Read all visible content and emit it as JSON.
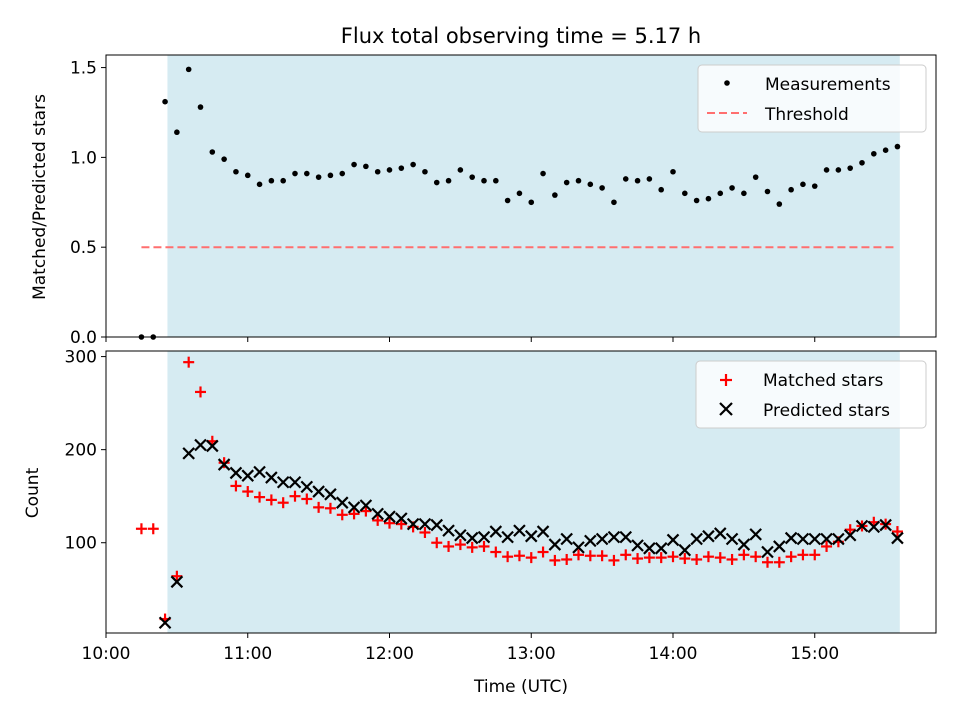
{
  "chart_data": [
    {
      "type": "scatter",
      "title": "Flux total observing time = 5.17 h",
      "ylabel": "Matched/Predicted stars",
      "xlabel": "",
      "ylim": [
        0,
        1.57
      ],
      "yticks": [
        "0.0",
        "0.5",
        "1.0",
        "1.5"
      ],
      "grid": false,
      "legend": "top-right",
      "observing_window": {
        "start": "10:26",
        "end": "15:36",
        "color": "#add8e6"
      },
      "series": [
        {
          "name": "Measurements",
          "color": "#000000",
          "marker": "dot",
          "x": [
            "10:15",
            "10:20",
            "10:25",
            "10:30",
            "10:35",
            "10:40",
            "10:45",
            "10:50",
            "10:55",
            "11:00",
            "11:05",
            "11:10",
            "11:15",
            "11:20",
            "11:25",
            "11:30",
            "11:35",
            "11:40",
            "11:45",
            "11:50",
            "11:55",
            "12:00",
            "12:05",
            "12:10",
            "12:15",
            "12:20",
            "12:25",
            "12:30",
            "12:35",
            "12:40",
            "12:45",
            "12:50",
            "12:55",
            "13:00",
            "13:05",
            "13:10",
            "13:15",
            "13:20",
            "13:25",
            "13:30",
            "13:35",
            "13:40",
            "13:45",
            "13:50",
            "13:55",
            "14:00",
            "14:05",
            "14:10",
            "14:15",
            "14:20",
            "14:25",
            "14:30",
            "14:35",
            "14:40",
            "14:45",
            "14:50",
            "14:55",
            "15:00",
            "15:05",
            "15:10",
            "15:15",
            "15:20",
            "15:25",
            "15:30",
            "15:35"
          ],
          "y": [
            0.0,
            0.0,
            1.31,
            1.14,
            1.49,
            1.28,
            1.03,
            0.99,
            0.92,
            0.9,
            0.85,
            0.87,
            0.87,
            0.91,
            0.91,
            0.89,
            0.9,
            0.91,
            0.96,
            0.95,
            0.92,
            0.93,
            0.94,
            0.96,
            0.92,
            0.86,
            0.87,
            0.93,
            0.89,
            0.87,
            0.87,
            0.76,
            0.8,
            0.75,
            0.91,
            0.79,
            0.86,
            0.87,
            0.85,
            0.83,
            0.75,
            0.88,
            0.87,
            0.88,
            0.82,
            0.92,
            0.8,
            0.76,
            0.77,
            0.8,
            0.83,
            0.8,
            0.89,
            0.81,
            0.74,
            0.82,
            0.85,
            0.84,
            0.93,
            0.93,
            0.94,
            0.97,
            1.02,
            1.04,
            1.06
          ]
        },
        {
          "name": "Threshold",
          "color": "#ff6f6f",
          "style": "dashed",
          "x": [
            "10:15",
            "15:35"
          ],
          "y": [
            0.5,
            0.5
          ]
        }
      ]
    },
    {
      "type": "scatter",
      "title": "",
      "ylabel": "Count",
      "xlabel": "Time (UTC)",
      "ylim": [
        3,
        306
      ],
      "yticks": [
        "100",
        "200",
        "300"
      ],
      "xticks": [
        "10:00",
        "11:00",
        "12:00",
        "13:00",
        "14:00",
        "15:00"
      ],
      "grid": false,
      "legend": "top-right",
      "observing_window": {
        "start": "10:26",
        "end": "15:36",
        "color": "#add8e6"
      },
      "series": [
        {
          "name": "Matched stars",
          "color": "#ff0000",
          "marker": "plus",
          "x": [
            "10:15",
            "10:20",
            "10:25",
            "10:30",
            "10:35",
            "10:40",
            "10:45",
            "10:50",
            "10:55",
            "11:00",
            "11:05",
            "11:10",
            "11:15",
            "11:20",
            "11:25",
            "11:30",
            "11:35",
            "11:40",
            "11:45",
            "11:50",
            "11:55",
            "12:00",
            "12:05",
            "12:10",
            "12:15",
            "12:20",
            "12:25",
            "12:30",
            "12:35",
            "12:40",
            "12:45",
            "12:50",
            "12:55",
            "13:00",
            "13:05",
            "13:10",
            "13:15",
            "13:20",
            "13:25",
            "13:30",
            "13:35",
            "13:40",
            "13:45",
            "13:50",
            "13:55",
            "14:00",
            "14:05",
            "14:10",
            "14:15",
            "14:20",
            "14:25",
            "14:30",
            "14:35",
            "14:40",
            "14:45",
            "14:50",
            "14:55",
            "15:00",
            "15:05",
            "15:10",
            "15:15",
            "15:20",
            "15:25",
            "15:30",
            "15:35"
          ],
          "y": [
            115,
            115,
            18,
            64,
            294,
            262,
            209,
            186,
            161,
            155,
            149,
            146,
            143,
            150,
            147,
            138,
            137,
            130,
            131,
            134,
            124,
            121,
            120,
            117,
            111,
            100,
            96,
            98,
            95,
            96,
            90,
            85,
            86,
            84,
            90,
            81,
            82,
            87,
            86,
            86,
            81,
            87,
            83,
            84,
            84,
            85,
            83,
            82,
            85,
            84,
            82,
            87,
            85,
            79,
            79,
            85,
            87,
            87,
            96,
            101,
            114,
            118,
            122,
            120,
            112
          ]
        },
        {
          "name": "Predicted stars",
          "color": "#000000",
          "marker": "x",
          "x": [
            "10:25",
            "10:30",
            "10:35",
            "10:40",
            "10:45",
            "10:50",
            "10:55",
            "11:00",
            "11:05",
            "11:10",
            "11:15",
            "11:20",
            "11:25",
            "11:30",
            "11:35",
            "11:40",
            "11:45",
            "11:50",
            "11:55",
            "12:00",
            "12:05",
            "12:10",
            "12:15",
            "12:20",
            "12:25",
            "12:30",
            "12:35",
            "12:40",
            "12:45",
            "12:50",
            "12:55",
            "13:00",
            "13:05",
            "13:10",
            "13:15",
            "13:20",
            "13:25",
            "13:30",
            "13:35",
            "13:40",
            "13:45",
            "13:50",
            "13:55",
            "14:00",
            "14:05",
            "14:10",
            "14:15",
            "14:20",
            "14:25",
            "14:30",
            "14:35",
            "14:40",
            "14:45",
            "14:50",
            "14:55",
            "15:00",
            "15:05",
            "15:10",
            "15:15",
            "15:20",
            "15:25",
            "15:30",
            "15:35"
          ],
          "y": [
            14,
            58,
            196,
            205,
            204,
            184,
            175,
            172,
            176,
            170,
            165,
            165,
            160,
            155,
            152,
            143,
            138,
            140,
            131,
            128,
            126,
            120,
            120,
            119,
            113,
            108,
            105,
            106,
            112,
            106,
            113,
            107,
            112,
            98,
            104,
            95,
            102,
            104,
            106,
            106,
            97,
            94,
            94,
            103,
            92,
            104,
            107,
            110,
            104,
            98,
            109,
            90,
            96,
            105,
            104,
            104,
            104,
            104,
            108,
            118,
            117,
            119,
            105
          ]
        }
      ]
    }
  ]
}
